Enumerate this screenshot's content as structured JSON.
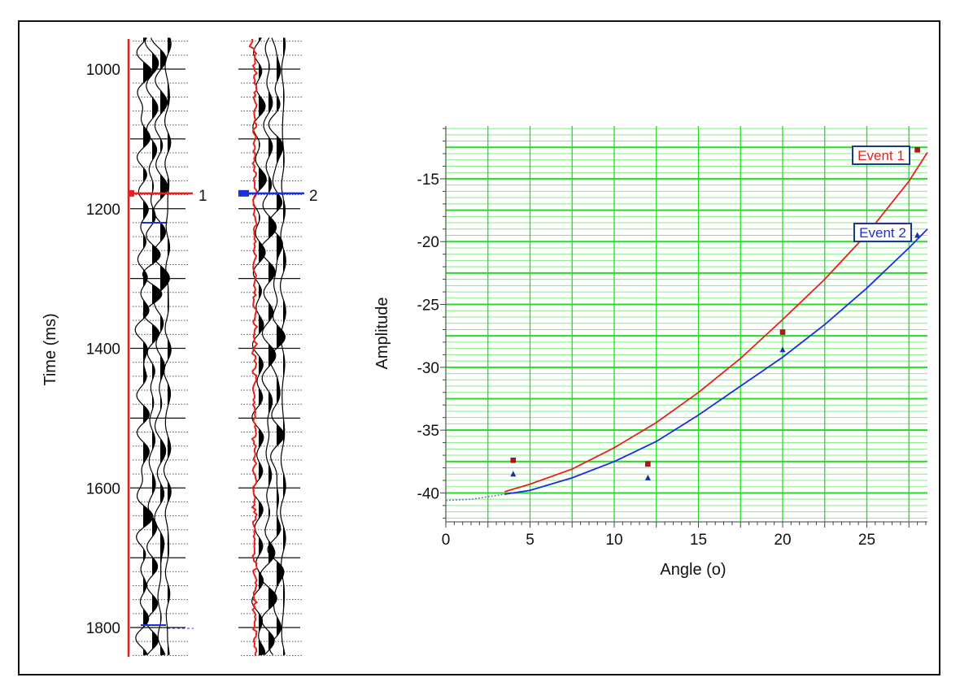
{
  "seismic": {
    "ylabel": "Time (ms)",
    "time_ticks": [
      1000,
      1200,
      1400,
      1600,
      1800
    ],
    "time_range": [
      955,
      1840
    ],
    "major_grid_ms": 100,
    "minor_grid_ms": 20,
    "panels": [
      {
        "event_label": "1",
        "event_time": 1178,
        "event_color": "#e8201c"
      },
      {
        "event_label": "2",
        "event_time": 1178,
        "event_color": "#1a2ee0"
      }
    ]
  },
  "chart_data": {
    "type": "scatter",
    "title": "",
    "xlabel": "Angle (o)",
    "ylabel": "Amplitude",
    "xlim": [
      0,
      28.6
    ],
    "ylim": [
      -42.3,
      -10.8
    ],
    "xticks": [
      0,
      5,
      10,
      15,
      20,
      25
    ],
    "yticks": [
      -15,
      -20,
      -25,
      -30,
      -35,
      -40
    ],
    "grid": true,
    "grid_color": "#22dd22",
    "series": [
      {
        "name": "Event 1",
        "color": "#e8201c",
        "marker": "square",
        "points": [
          [
            4,
            -37.4
          ],
          [
            12,
            -37.7
          ],
          [
            20,
            -27.2
          ],
          [
            28,
            -12.7
          ]
        ],
        "fit": [
          [
            3.5,
            -39.9
          ],
          [
            5,
            -39.3
          ],
          [
            7.5,
            -38.1
          ],
          [
            10,
            -36.4
          ],
          [
            12.5,
            -34.4
          ],
          [
            15,
            -32.0
          ],
          [
            17.5,
            -29.3
          ],
          [
            20,
            -26.2
          ],
          [
            22.5,
            -23.0
          ],
          [
            25,
            -19.4
          ],
          [
            27.5,
            -15.2
          ],
          [
            28.6,
            -12.9
          ]
        ]
      },
      {
        "name": "Event 2",
        "color": "#1a2ee0",
        "marker": "triangle",
        "points": [
          [
            4,
            -38.5
          ],
          [
            12,
            -38.8
          ],
          [
            20,
            -28.6
          ],
          [
            28,
            -19.5
          ]
        ],
        "fit": [
          [
            3.5,
            -40.1
          ],
          [
            5,
            -39.8
          ],
          [
            7.5,
            -38.8
          ],
          [
            10,
            -37.5
          ],
          [
            12.5,
            -35.9
          ],
          [
            15,
            -33.8
          ],
          [
            17.5,
            -31.5
          ],
          [
            20,
            -29.2
          ],
          [
            22.5,
            -26.6
          ],
          [
            25,
            -23.7
          ],
          [
            27.5,
            -20.5
          ],
          [
            28.6,
            -19.0
          ]
        ]
      }
    ],
    "extrapolation": [
      [
        0,
        -40.6
      ],
      [
        1.5,
        -40.5
      ],
      [
        3.5,
        -40.1
      ]
    ]
  }
}
